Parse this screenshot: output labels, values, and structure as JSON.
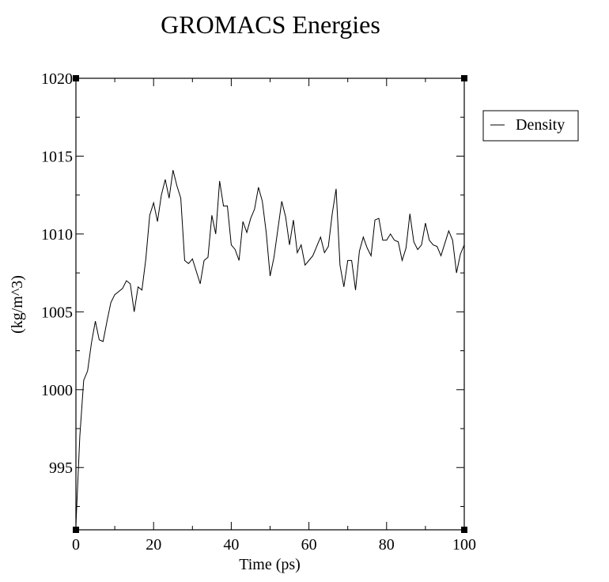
{
  "chart_data": {
    "type": "line",
    "title": "GROMACS Energies",
    "xlabel": "Time (ps)",
    "ylabel": "(kg/m^3)",
    "xlim": [
      0,
      100
    ],
    "ylim": [
      991,
      1020
    ],
    "x_ticks": [
      0,
      20,
      40,
      60,
      80,
      100
    ],
    "x_tick_labels": [
      "0",
      "20",
      "40",
      "60",
      "80",
      "100"
    ],
    "y_ticks": [
      995,
      1000,
      1005,
      1010,
      1015,
      1020
    ],
    "y_tick_labels": [
      "995",
      "1000",
      "1005",
      "1010",
      "1015",
      "1020"
    ],
    "grid": false,
    "legend": {
      "position": "right",
      "entries": [
        "Density"
      ]
    },
    "series": [
      {
        "name": "Density",
        "x": [
          0,
          1,
          2,
          3,
          4,
          5,
          6,
          7,
          8,
          9,
          10,
          11,
          12,
          13,
          14,
          15,
          16,
          17,
          18,
          19,
          20,
          21,
          22,
          23,
          24,
          25,
          26,
          27,
          28,
          29,
          30,
          31,
          32,
          33,
          34,
          35,
          36,
          37,
          38,
          39,
          40,
          41,
          42,
          43,
          44,
          45,
          46,
          47,
          48,
          49,
          50,
          51,
          52,
          53,
          54,
          55,
          56,
          57,
          58,
          59,
          60,
          61,
          62,
          63,
          64,
          65,
          66,
          67,
          68,
          69,
          70,
          71,
          72,
          73,
          74,
          75,
          76,
          77,
          78,
          79,
          80,
          81,
          82,
          83,
          84,
          85,
          86,
          87,
          88,
          89,
          90,
          91,
          92,
          93,
          94,
          95,
          96,
          97,
          98,
          99,
          100
        ],
        "values": [
          991.3,
          997.0,
          1000.6,
          1001.2,
          1003.0,
          1004.4,
          1003.2,
          1003.1,
          1004.4,
          1005.6,
          1006.1,
          1006.3,
          1006.5,
          1007.0,
          1006.8,
          1005.0,
          1006.6,
          1006.4,
          1008.4,
          1011.2,
          1012.0,
          1010.8,
          1012.5,
          1013.5,
          1012.3,
          1014.1,
          1013.1,
          1012.3,
          1008.3,
          1008.1,
          1008.4,
          1007.6,
          1006.8,
          1008.3,
          1008.5,
          1011.2,
          1010.0,
          1013.4,
          1011.8,
          1011.8,
          1009.3,
          1009.0,
          1008.3,
          1010.8,
          1010.1,
          1011.0,
          1011.6,
          1013.0,
          1012.1,
          1010.1,
          1007.3,
          1008.5,
          1010.3,
          1012.1,
          1011.1,
          1009.3,
          1010.9,
          1008.8,
          1009.3,
          1008.0,
          1008.3,
          1008.6,
          1009.2,
          1009.8,
          1008.8,
          1009.2,
          1011.3,
          1012.9,
          1008.0,
          1006.6,
          1008.3,
          1008.3,
          1006.4,
          1008.9,
          1009.8,
          1009.1,
          1008.6,
          1010.9,
          1011.0,
          1009.6,
          1009.6,
          1010.0,
          1009.6,
          1009.5,
          1008.3,
          1009.1,
          1011.3,
          1009.5,
          1009.0,
          1009.3,
          1010.7,
          1009.6,
          1009.3,
          1009.2,
          1008.6,
          1009.4,
          1010.2,
          1009.6,
          1007.5,
          1008.7,
          1009.3
        ]
      }
    ]
  }
}
